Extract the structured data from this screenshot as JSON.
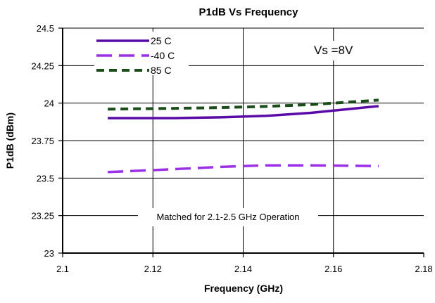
{
  "chart_data": {
    "type": "line",
    "title": "P1dB Vs Frequency",
    "xlabel": "Frequency (GHz)",
    "ylabel": "P1dB (dBm)",
    "xlim": [
      2.1,
      2.18
    ],
    "ylim": [
      23,
      24.5
    ],
    "x_ticks": [
      "2.1",
      "2.12",
      "2.14",
      "2.16",
      "2.18"
    ],
    "y_ticks": [
      "23",
      "23.25",
      "23.5",
      "23.75",
      "24",
      "24.25",
      "24.5"
    ],
    "x_tick_values": [
      2.1,
      2.12,
      2.14,
      2.16,
      2.18
    ],
    "y_tick_values": [
      23,
      23.25,
      23.5,
      23.75,
      24,
      24.25,
      24.5
    ],
    "grid": "vertical and horizontal",
    "legend_position": "top-left",
    "series": [
      {
        "name": "25 C",
        "color": "#5a0aa6",
        "dash": "solid",
        "x": [
          2.11,
          2.125,
          2.135,
          2.145,
          2.155,
          2.165,
          2.17
        ],
        "y": [
          23.9,
          23.9,
          23.905,
          23.915,
          23.935,
          23.965,
          23.98
        ]
      },
      {
        "name": "-40 C",
        "color": "#9b30e6",
        "dash": "long-dash",
        "x": [
          2.11,
          2.125,
          2.135,
          2.145,
          2.155,
          2.165,
          2.17
        ],
        "y": [
          23.54,
          23.56,
          23.575,
          23.585,
          23.585,
          23.582,
          23.58
        ]
      },
      {
        "name": "85 C",
        "color": "#1a4d1a",
        "dash": "short-dash",
        "x": [
          2.11,
          2.125,
          2.135,
          2.145,
          2.155,
          2.165,
          2.17
        ],
        "y": [
          23.96,
          23.965,
          23.97,
          23.978,
          23.99,
          24.01,
          24.02
        ]
      }
    ],
    "annotations": [
      {
        "id": "vs",
        "text": "Vs =8V"
      },
      {
        "id": "matched",
        "text": "Matched for 2.1-2.5 GHz Operation"
      }
    ]
  }
}
